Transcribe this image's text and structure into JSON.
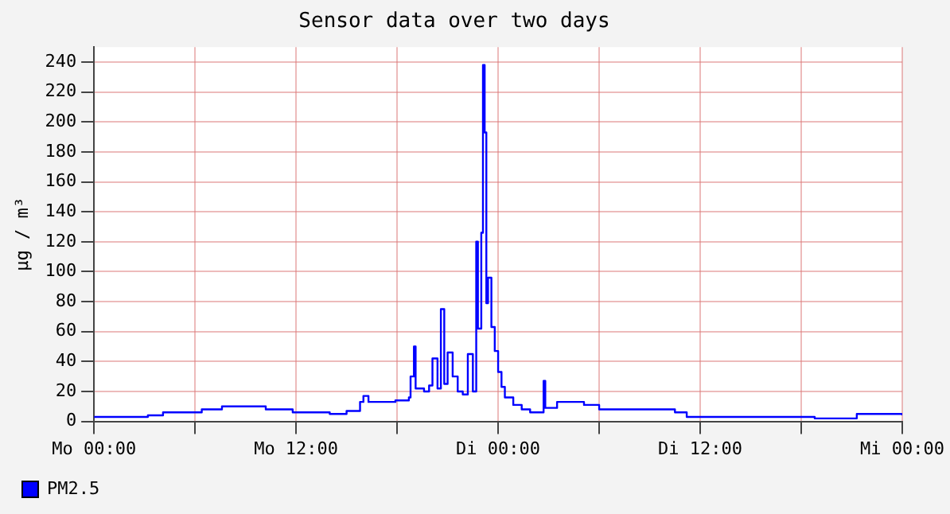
{
  "chart_data": {
    "type": "step",
    "title": "Sensor data over two days",
    "ylabel": "µg / m³",
    "xlim": [
      "--01-01T00:00",
      "--01-03T00:00"
    ],
    "xticks": [
      {
        "value": "--01-01T00:00",
        "label": "Mo 00:00"
      },
      {
        "value": "--01-01T06:00",
        "label": null
      },
      {
        "value": "--01-01T12:00",
        "label": "Mo 12:00"
      },
      {
        "value": "--01-01T18:00",
        "label": null
      },
      {
        "value": "--01-02T00:00",
        "label": "Di 00:00"
      },
      {
        "value": "--01-02T06:00",
        "label": null
      },
      {
        "value": "--01-02T12:00",
        "label": "Di 12:00"
      },
      {
        "value": "--01-02T18:00",
        "label": null
      },
      {
        "value": "--01-03T00:00",
        "label": "Mi 00:00"
      }
    ],
    "ylim": [
      0,
      250
    ],
    "yticks": [
      0,
      20,
      40,
      60,
      80,
      100,
      120,
      140,
      160,
      180,
      200,
      220,
      240
    ],
    "grid": true,
    "legend": "bottom left",
    "marker": "none",
    "series": [
      {
        "name": "PM2.5",
        "color": "#0000ff",
        "x": [
          "--01-01T00:00",
          "--01-01T03:12",
          "--01-01T04:06",
          "--01-01T06:24",
          "--01-01T07:36",
          "--01-01T10:12",
          "--01-01T11:48",
          "--01-01T14:00",
          "--01-01T15:00",
          "--01-01T15:48",
          "--01-01T16:00",
          "--01-01T16:18",
          "--01-01T17:54",
          "--01-01T18:42",
          "--01-01T18:48",
          "--01-01T19:00",
          "--01-01T19:06",
          "--01-01T19:36",
          "--01-01T19:54",
          "--01-01T20:06",
          "--01-01T20:24",
          "--01-01T20:36",
          "--01-01T20:48",
          "--01-01T21:00",
          "--01-01T21:18",
          "--01-01T21:36",
          "--01-01T21:54",
          "--01-01T22:12",
          "--01-01T22:30",
          "--01-01T22:42",
          "--01-01T22:48",
          "--01-01T23:00",
          "--01-01T23:06",
          "--01-01T23:12",
          "--01-01T23:18",
          "--01-01T23:24",
          "--01-01T23:36",
          "--01-01T23:48",
          "--01-02T00:00",
          "--01-02T00:12",
          "--01-02T00:24",
          "--01-02T00:48",
          "--01-02T00:54",
          "--01-02T01:24",
          "--01-02T01:54",
          "--01-02T02:36",
          "--01-02T02:42",
          "--01-02T02:48",
          "--01-02T03:30",
          "--01-02T04:00",
          "--01-02T05:06",
          "--01-02T06:00",
          "--01-02T10:30",
          "--01-02T11:12",
          "--01-02T15:36",
          "--01-02T18:48",
          "--01-02T21:18",
          "--01-03T00:00"
        ],
        "values": [
          3,
          4,
          6,
          8,
          10,
          8,
          6,
          5,
          7,
          13,
          17,
          13,
          14,
          16,
          30,
          50,
          22,
          20,
          24,
          42,
          22,
          75,
          25,
          46,
          30,
          20,
          18,
          45,
          20,
          120,
          62,
          126,
          238,
          193,
          79,
          96,
          63,
          47,
          33,
          23,
          16,
          16,
          11,
          8,
          6,
          6,
          27,
          9,
          13,
          13,
          11,
          8,
          6,
          3,
          3,
          2,
          5,
          4
        ]
      }
    ]
  }
}
